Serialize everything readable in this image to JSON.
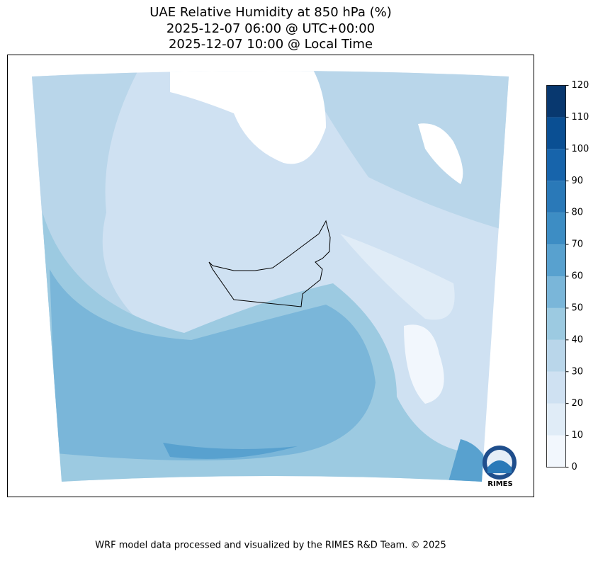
{
  "chart_data": {
    "type": "filled-contour-map",
    "title": [
      "UAE Relative Humidity at 850 hPa (%)",
      "2025-12-07 06:00 @ UTC+00:00",
      "2025-12-07 10:00 @ Local Time"
    ],
    "colorbar": {
      "levels": [
        0,
        10,
        20,
        30,
        40,
        50,
        60,
        70,
        80,
        90,
        100,
        110,
        120
      ],
      "colors": [
        "#f2f7fd",
        "#e0ecf7",
        "#cfe1f2",
        "#b9d6ea",
        "#9ccae1",
        "#7ab6d9",
        "#58a1cf",
        "#3d8dc4",
        "#2a79b8",
        "#1764ab",
        "#0a4f93",
        "#08386f"
      ]
    },
    "logo": "RIMES",
    "footer": "WRF model data processed and visualized by the RIMES R&D Team. © 2025"
  }
}
